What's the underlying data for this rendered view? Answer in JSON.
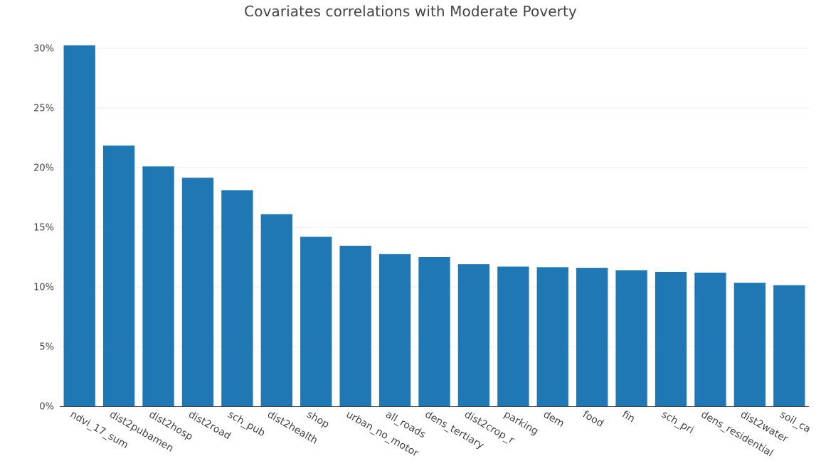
{
  "chart_data": {
    "type": "bar",
    "title": "Covariates correlations with Moderate Poverty",
    "xlabel": "",
    "ylabel": "",
    "ylim": [
      0,
      31
    ],
    "yticks": [
      0,
      5,
      10,
      15,
      20,
      25,
      30
    ],
    "ytick_labels": [
      "0%",
      "5%",
      "10%",
      "15%",
      "20%",
      "25%",
      "30%"
    ],
    "categories": [
      "ndvi_17_sum",
      "dist2pubamen",
      "dist2hosp",
      "dist2road",
      "sch_pub",
      "dist2health",
      "shop",
      "urban_no_motor",
      "all_roads",
      "dens_tertiary",
      "dist2crop_r",
      "parking",
      "dem",
      "food",
      "fin",
      "sch_pri",
      "dens_residential",
      "dist2water",
      "soil_ca"
    ],
    "values": [
      30.25,
      21.85,
      20.1,
      19.15,
      18.1,
      16.1,
      14.2,
      13.45,
      12.75,
      12.5,
      11.9,
      11.7,
      11.65,
      11.6,
      11.4,
      11.25,
      11.2,
      10.35,
      10.15
    ],
    "grid": true,
    "color": "#1f77b4",
    "grid_color": "#eeeeee",
    "text_color": "#444444"
  }
}
